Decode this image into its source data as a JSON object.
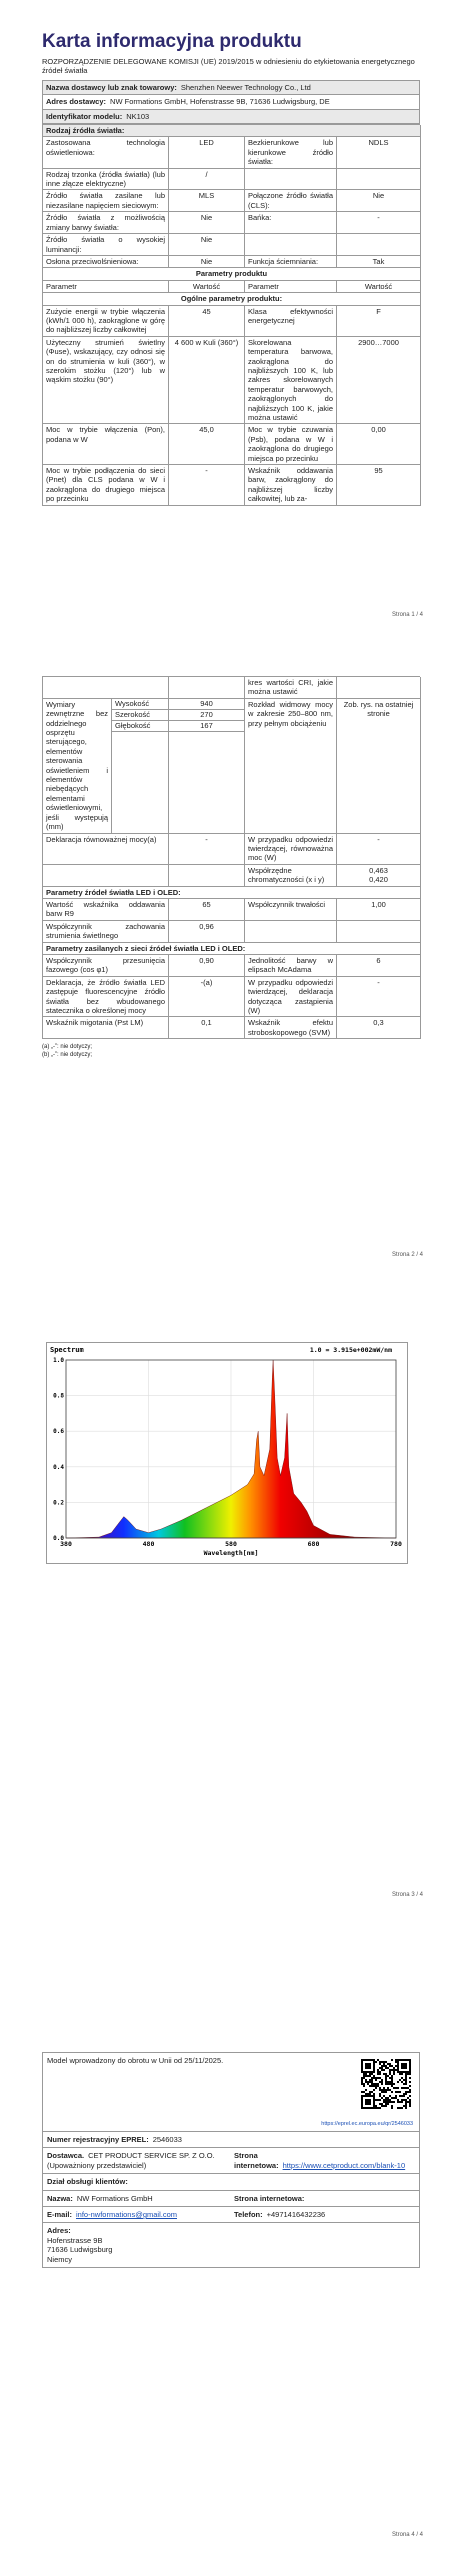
{
  "page1": {
    "title": "Karta informacyjna produktu",
    "regulation": "ROZPORZĄDZENIE DELEGOWANE KOMISJI (UE) 2019/2015 w odniesieniu do etykietowania energetycznego źródeł światła",
    "supplier": {
      "label": "Nazwa dostawcy lub znak towarowy:",
      "value": "Shenzhen Neewer Technology Co., Ltd"
    },
    "address": {
      "label": "Adres dostawcy:",
      "value": "NW Formations GmbH, Hofenstrasse 9B, 71636 Ludwigsburg, DE"
    },
    "model": {
      "label": "Identyfikator modelu:",
      "value": "NK103"
    },
    "light_source_heading": "Rodzaj źródła światła:",
    "light_source_rows": [
      [
        "Zastosowana technologia oświetleniowa:",
        "LED",
        "Bezkierunkowe lub kierunkowe źródło światła:",
        "NDLS"
      ],
      [
        "Rodzaj trzonka (źródła światła) (lub inne złącze elektryczne)",
        "/",
        null,
        null
      ],
      [
        "Źródło światła zasilane lub niezasilane napięciem sieciowym:",
        "MLS",
        "Połączone źródło światła (CLS):",
        "Nie"
      ],
      [
        "Źródło światła z możliwością zmiany barwy światła:",
        "Nie",
        "Bańka:",
        "-"
      ],
      [
        "Źródło światła o wysokiej luminancji:",
        "Nie",
        null,
        null
      ],
      [
        "Osłona przeciwolśnieniowa:",
        "Nie",
        "Funkcja ściemniania:",
        "Tak"
      ]
    ],
    "product_params_heading": "Parametry produktu",
    "columns": [
      "Parametr",
      "Wartość",
      "Parametr",
      "Wartość"
    ],
    "general_heading": "Ogólne parametry produktu:",
    "general_rows": [
      [
        "Zużycie energii w trybie włączenia (kWh/1 000 h), zaokrąglone w górę do najbliższej liczby całkowitej",
        "45",
        "Klasa efektywności energetycznej",
        "F"
      ],
      [
        "Użyteczny strumień świetlny (Φuse), wskazujący, czy odnosi się on do strumienia w kuli (360°), w szerokim stożku (120°) lub w wąskim stożku (90°)",
        "4 600 w Kuli (360°)",
        "Skorelowana temperatura barwowa, zaokrąglona do najbliższych 100 K, lub zakres skorelowanych temperatur barwowych, zaokrąglonych do najbliższych 100 K, jakie można ustawić",
        "2900…7000"
      ],
      [
        "Moc w trybie włączenia (Pon), podana w W",
        "45,0",
        "Moc w trybie czuwania (Psb), podana w W i zaokrąglona do drugiego miejsca po przecinku",
        "0,00"
      ],
      [
        "Moc w trybie podłączenia do sieci (Pnet) dla CLS podana w W i zaokrąglona do drugiego miejsca po przecinku",
        "-",
        "Wskaźnik oddawania barw, zaokrąglony do najbliższej liczby całkowitej, lub za-",
        "95"
      ]
    ],
    "footer": "Strona 1 / 4"
  },
  "page2": {
    "continued_row": [
      null,
      null,
      "kres wartości CRI, jakie można ustawić",
      null
    ],
    "dimensions": {
      "label": "Wymiary zewnętrzne bez oddzielnego osprzętu sterującego, elementów sterowania oświetleniem i elementów niebędących elementami oświetleniowymi, jeśli występują (mm)",
      "parts": [
        {
          "name": "Wysokość",
          "value": "940"
        },
        {
          "name": "Szerokość",
          "value": "270"
        },
        {
          "name": "Głębokość",
          "value": "167"
        }
      ],
      "param": "Rozkład widmowy mocy w zakresie 250–800 nm, przy pełnym obciążeniu",
      "value": "Zob. rys. na ostatniej stronie"
    },
    "rows_a": [
      [
        "Deklaracja równoważnej mocy(a)",
        "-",
        "W przypadku odpowiedzi twierdzącej, równoważna moc (W)",
        "-"
      ],
      [
        null,
        null,
        "Współrzędne chromatyczności (x i y)",
        [
          "0,463",
          "0,420"
        ]
      ]
    ],
    "led_heading": "Parametry źródeł światła LED i OLED:",
    "led_rows": [
      [
        "Wartość wskaźnika oddawania barw R9",
        "65",
        "Współczynnik trwałości",
        "1,00"
      ],
      [
        "Współczynnik zachowania strumienia świetlnego",
        "0,96",
        null,
        null
      ]
    ],
    "mains_heading": "Parametry zasilanych z sieci źródeł światła LED i OLED:",
    "mains_rows": [
      [
        "Współczynnik przesunięcia fazowego (cos φ1)",
        "0,90",
        "Jednolitość barwy w elipsach McAdama",
        "6"
      ],
      [
        "Deklaracja, że źródło światła LED zastępuje fluorescencyjne źródło światła bez wbudowanego statecznika o określonej mocy",
        "-(a)",
        "W przypadku odpowiedzi twierdzącej, deklaracja dotycząca zastąpienia (W)",
        "-"
      ],
      [
        "Wskaźnik migotania (Pst LM)",
        "0,1",
        "Wskaźnik efektu stroboskopowego (SVM)",
        "0,3"
      ]
    ],
    "footnotes": [
      "(a) „-”: nie dotyczy;",
      "(b) „-”: nie dotyczy;"
    ],
    "footer": "Strona 2 / 4"
  },
  "page3": {
    "spectrum": {
      "title": "Spectrum",
      "scale_note": "1.0 = 3.915e+002mW/nm",
      "x_label": "Wavelength[nm]",
      "xlim": [
        380,
        780
      ],
      "xticks": [
        380,
        480,
        580,
        680,
        780
      ],
      "ylim": [
        0,
        1
      ],
      "yticks": [
        {
          "value": 0,
          "label": "0.0"
        },
        {
          "value": 0.2,
          "label": "0.2"
        },
        {
          "value": 0.4,
          "label": "0.4"
        },
        {
          "value": 0.6,
          "label": "0.6"
        },
        {
          "value": 0.8,
          "label": "0.8"
        },
        {
          "value": 1,
          "label": "1.0"
        }
      ]
    },
    "footer": "Strona 3 / 4"
  },
  "page4": {
    "market_date": "Model wprowadzony do obrotu w Unii od 25/11/2025.",
    "eprel_link": "https://eprel.ec.europa.eu/qr/2546033",
    "eprel": {
      "label": "Numer rejestracyjny EPREL:",
      "value": "2546033"
    },
    "supplier": {
      "label": "Dostawca.",
      "value": "CET PRODUCT SERVICE SP. Z O.O. (Upoważniony przedstawiciel)"
    },
    "supplier_web": {
      "label": "Strona internetowa:",
      "value": "https://www.cetproduct.com/blank-10"
    },
    "customer_service": "Dział obsługi klientów:",
    "name": {
      "label": "Nazwa:",
      "value": "NW Formations GmbH"
    },
    "web": {
      "label": "Strona internetowa:"
    },
    "email": {
      "label": "E-mail:",
      "value": "info-nwformations@gmail.com"
    },
    "phone": {
      "label": "Telefon:",
      "value": "+4971416432236"
    },
    "address": {
      "label": "Adres:",
      "lines": [
        "Hofenstrasse 9B",
        "71636 Ludwigsburg",
        "Niemcy"
      ]
    },
    "footer": "Strona 4 / 4"
  }
}
